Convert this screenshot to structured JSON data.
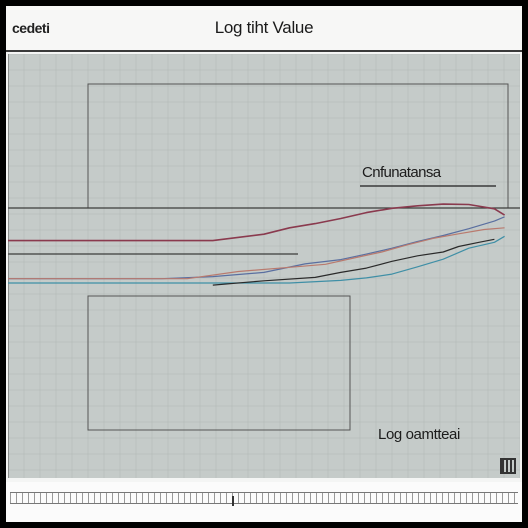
{
  "header": {
    "corner_label": "cedeti",
    "title": "Log tiht Value"
  },
  "legend": {
    "label": "Cnfunatansa"
  },
  "axis": {
    "label": "Log oamtteai"
  },
  "colors": {
    "plot_bg": "#c5cbc9",
    "grid": "#b3bab8",
    "series": [
      "#8a3a4e",
      "#5a6fa0",
      "#b97a6e",
      "#3f8fa6",
      "#2a2a2a"
    ]
  },
  "chart_data": {
    "type": "line",
    "title": "Log tiht Value",
    "xlabel": "Log oamtteai",
    "ylabel": "",
    "legend_text": "Cnfunatansa",
    "legend_position": "top-right",
    "grid": true,
    "xlim": [
      0,
      100
    ],
    "ylim": [
      0,
      100
    ],
    "series": [
      {
        "x": [
          0,
          40,
          50,
          55,
          60,
          65,
          70,
          75,
          80,
          85,
          90,
          95,
          97
        ],
        "y": [
          56,
          56,
          57.5,
          59,
          60,
          61.2,
          62.6,
          63.6,
          64.2,
          64.6,
          64.5,
          63.5,
          62
        ]
      },
      {
        "x": [
          0,
          30,
          40,
          50,
          58,
          65,
          70,
          75,
          80,
          85,
          90,
          95,
          97
        ],
        "y": [
          47,
          47,
          47.5,
          48.5,
          50.5,
          51.5,
          52.8,
          54.2,
          55.8,
          57.2,
          58.8,
          60.6,
          61.6
        ]
      },
      {
        "x": [
          0,
          35,
          45,
          55,
          62,
          68,
          73,
          78,
          83,
          88,
          93,
          97
        ],
        "y": [
          47,
          47,
          48.7,
          49.7,
          50.4,
          52,
          53.3,
          55,
          56.5,
          57.6,
          58.6,
          59
        ]
      },
      {
        "x": [
          0,
          55,
          65,
          70,
          75,
          80,
          85,
          90,
          95,
          97
        ],
        "y": [
          46,
          46,
          46.6,
          47.2,
          48.1,
          49.8,
          51.6,
          54.2,
          55.6,
          57
        ]
      },
      {
        "x": [
          40,
          50,
          60,
          65,
          70,
          75,
          80,
          85,
          88,
          92,
          95
        ],
        "y": [
          45.5,
          46.5,
          47.3,
          48.5,
          49.5,
          51.1,
          52.4,
          53.3,
          54.6,
          55.6,
          56.3
        ]
      }
    ]
  }
}
